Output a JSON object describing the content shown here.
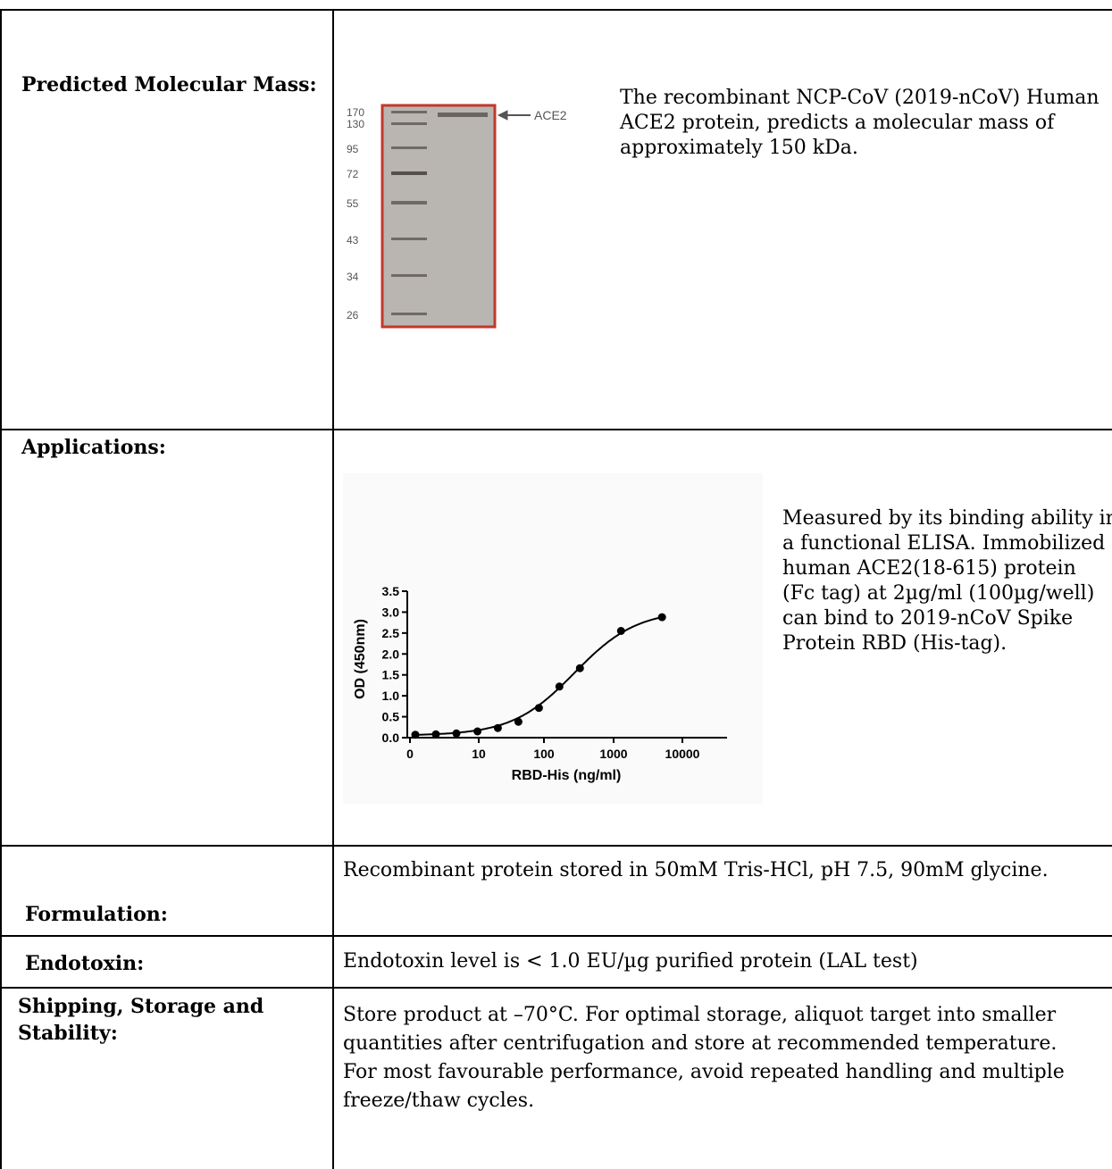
{
  "rows": {
    "mass": {
      "label": "Predicted Molecular Mass:",
      "text": [
        "The recombinant NCP-CoV (2019-nCoV) Human",
        "ACE2 protein, predicts a molecular mass of",
        "approximately 150 kDa."
      ],
      "gel": {
        "markers": [
          "170",
          "130",
          "95",
          "72",
          "55",
          "43",
          "34",
          "26"
        ],
        "band_label": "ACE2",
        "frame_color": "#c0392b"
      }
    },
    "applications": {
      "label": "Applications:",
      "text": [
        "Measured by its binding ability in",
        "a functional ELISA. Immobilized",
        "human ACE2(18-615) protein",
        "(Fc tag) at 2µg/ml (100µg/well)",
        "can bind to 2019-nCoV Spike",
        "Protein RBD (His-tag)."
      ]
    },
    "formulation": {
      "label": "Formulation:",
      "text": "Recombinant protein stored in 50mM Tris-HCl, pH 7.5, 90mM glycine."
    },
    "endotoxin": {
      "label": "Endotoxin:",
      "text": "Endotoxin level is < 1.0 EU/µg purified protein (LAL test)"
    },
    "storage": {
      "label_lines": [
        "Shipping, Storage and",
        "Stability:"
      ],
      "text": [
        "Store product at –70°C. For optimal storage, aliquot target into smaller",
        "quantities after centrifugation and store at recommended temperature.",
        "For most favourable performance, avoid repeated handling and multiple",
        "freeze/thaw cycles."
      ]
    }
  },
  "chart_data": {
    "type": "scatter",
    "xlabel": "RBD-His (ng/ml)",
    "ylabel": "OD (450nm)",
    "x_scale": "log",
    "x_ticks": [
      "0",
      "10",
      "100",
      "1000",
      "10000"
    ],
    "y_ticks": [
      "0.0",
      "0.5",
      "1.0",
      "1.5",
      "2.0",
      "2.5",
      "3.0",
      "3.5"
    ],
    "ylim": [
      0,
      3.5
    ],
    "points": [
      {
        "x": 1.2,
        "y": 0.07
      },
      {
        "x": 2.4,
        "y": 0.08
      },
      {
        "x": 4.8,
        "y": 0.1
      },
      {
        "x": 9.8,
        "y": 0.15
      },
      {
        "x": 19.5,
        "y": 0.23
      },
      {
        "x": 39,
        "y": 0.38
      },
      {
        "x": 78,
        "y": 0.71
      },
      {
        "x": 156,
        "y": 1.22
      },
      {
        "x": 312,
        "y": 1.66
      },
      {
        "x": 1250,
        "y": 2.55
      },
      {
        "x": 5000,
        "y": 2.88
      }
    ],
    "fit": "sigmoidal curve"
  }
}
